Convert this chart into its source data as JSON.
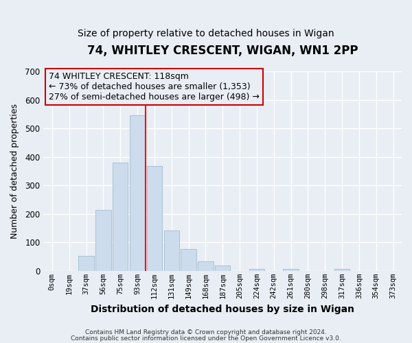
{
  "title": "74, WHITLEY CRESCENT, WIGAN, WN1 2PP",
  "subtitle": "Size of property relative to detached houses in Wigan",
  "xlabel": "Distribution of detached houses by size in Wigan",
  "ylabel": "Number of detached properties",
  "footnote1": "Contains HM Land Registry data © Crown copyright and database right 2024.",
  "footnote2": "Contains public sector information licensed under the Open Government Licence v3.0.",
  "bar_labels": [
    "0sqm",
    "19sqm",
    "37sqm",
    "56sqm",
    "75sqm",
    "93sqm",
    "112sqm",
    "131sqm",
    "149sqm",
    "168sqm",
    "187sqm",
    "205sqm",
    "224sqm",
    "242sqm",
    "261sqm",
    "280sqm",
    "298sqm",
    "317sqm",
    "336sqm",
    "354sqm",
    "373sqm"
  ],
  "bar_values": [
    0,
    0,
    53,
    213,
    381,
    547,
    369,
    142,
    76,
    33,
    19,
    0,
    8,
    0,
    8,
    0,
    0,
    8,
    0,
    0,
    0
  ],
  "bar_color": "#ccdcec",
  "bar_edge_color": "#a8c0d4",
  "ylim": [
    0,
    700
  ],
  "yticks": [
    0,
    100,
    200,
    300,
    400,
    500,
    600,
    700
  ],
  "property_label": "74 WHITLEY CRESCENT: 118sqm",
  "annotation_line1": "← 73% of detached houses are smaller (1,353)",
  "annotation_line2": "27% of semi-detached houses are larger (498) →",
  "vline_index": 5.5,
  "bg_color": "#e8eef4",
  "grid_color": "#ffffff",
  "title_fontsize": 12,
  "subtitle_fontsize": 10,
  "annotation_fontsize": 9
}
